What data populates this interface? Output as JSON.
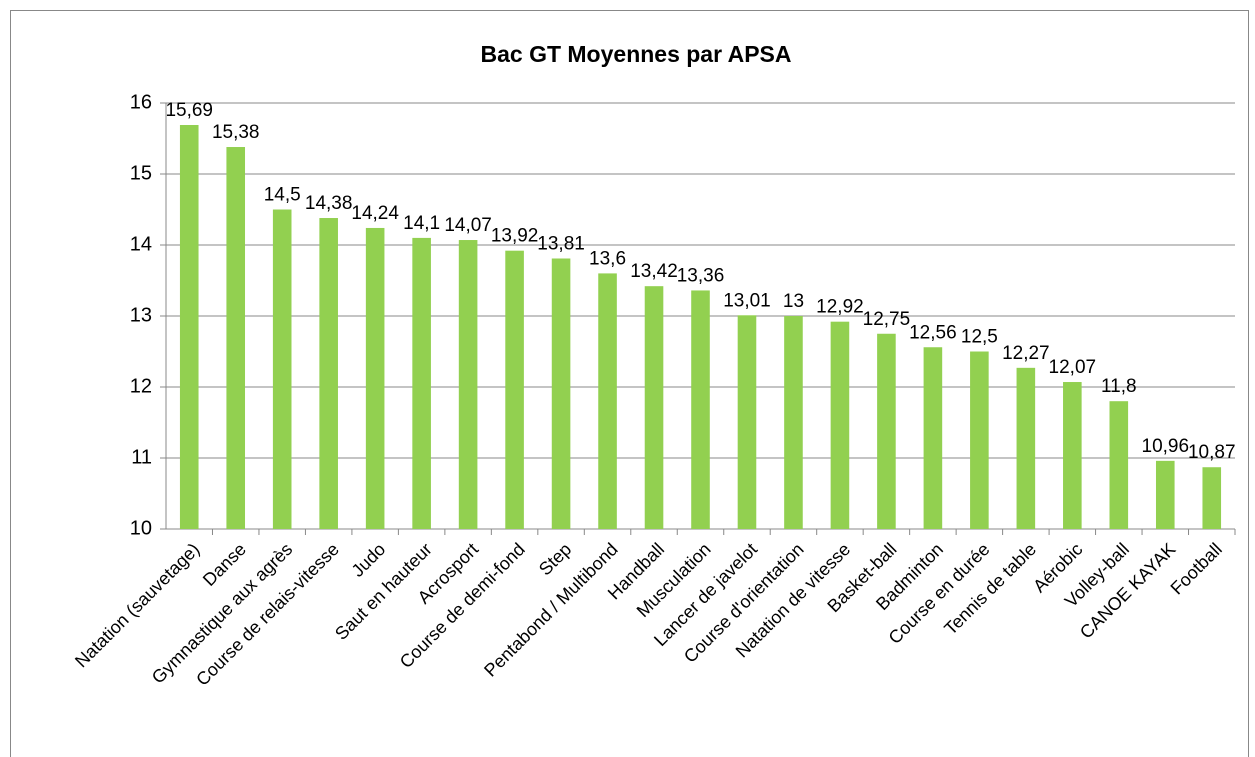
{
  "chart_data": {
    "type": "bar",
    "title": "Bac GT Moyennes par APSA",
    "categories": [
      "Natation (sauvetage)",
      "Danse",
      "Gymnastique aux agrès",
      "Course de relais-vitesse",
      "Judo",
      "Saut en hauteur",
      "Acrosport",
      "Course de demi-fond",
      "Step",
      "Pentabond / Multibond",
      "Handball",
      "Musculation",
      "Lancer de javelot",
      "Course d'orientation",
      "Natation de vitesse",
      "Basket-ball",
      "Badminton",
      "Course en durée",
      "Tennis de table",
      "Aérobic",
      "Volley-ball",
      "CANOE KAYAK",
      "Football"
    ],
    "values": [
      15.69,
      15.38,
      14.5,
      14.38,
      14.24,
      14.1,
      14.07,
      13.92,
      13.81,
      13.6,
      13.42,
      13.36,
      13.01,
      13,
      12.92,
      12.75,
      12.56,
      12.5,
      12.27,
      12.07,
      11.8,
      10.96,
      10.87
    ],
    "value_labels": [
      "15,69",
      "15,38",
      "14,5",
      "14,38",
      "14,24",
      "14,1",
      "14,07",
      "13,92",
      "13,81",
      "13,6",
      "13,42",
      "13,36",
      "13,01",
      "13",
      "12,92",
      "12,75",
      "12,56",
      "12,5",
      "12,27",
      "12,07",
      "11,8",
      "10,96",
      "10,87"
    ],
    "color": "#92d050",
    "ylim": [
      10,
      16
    ],
    "yticks": [
      10,
      11,
      12,
      13,
      14,
      15,
      16
    ],
    "grid": true
  }
}
